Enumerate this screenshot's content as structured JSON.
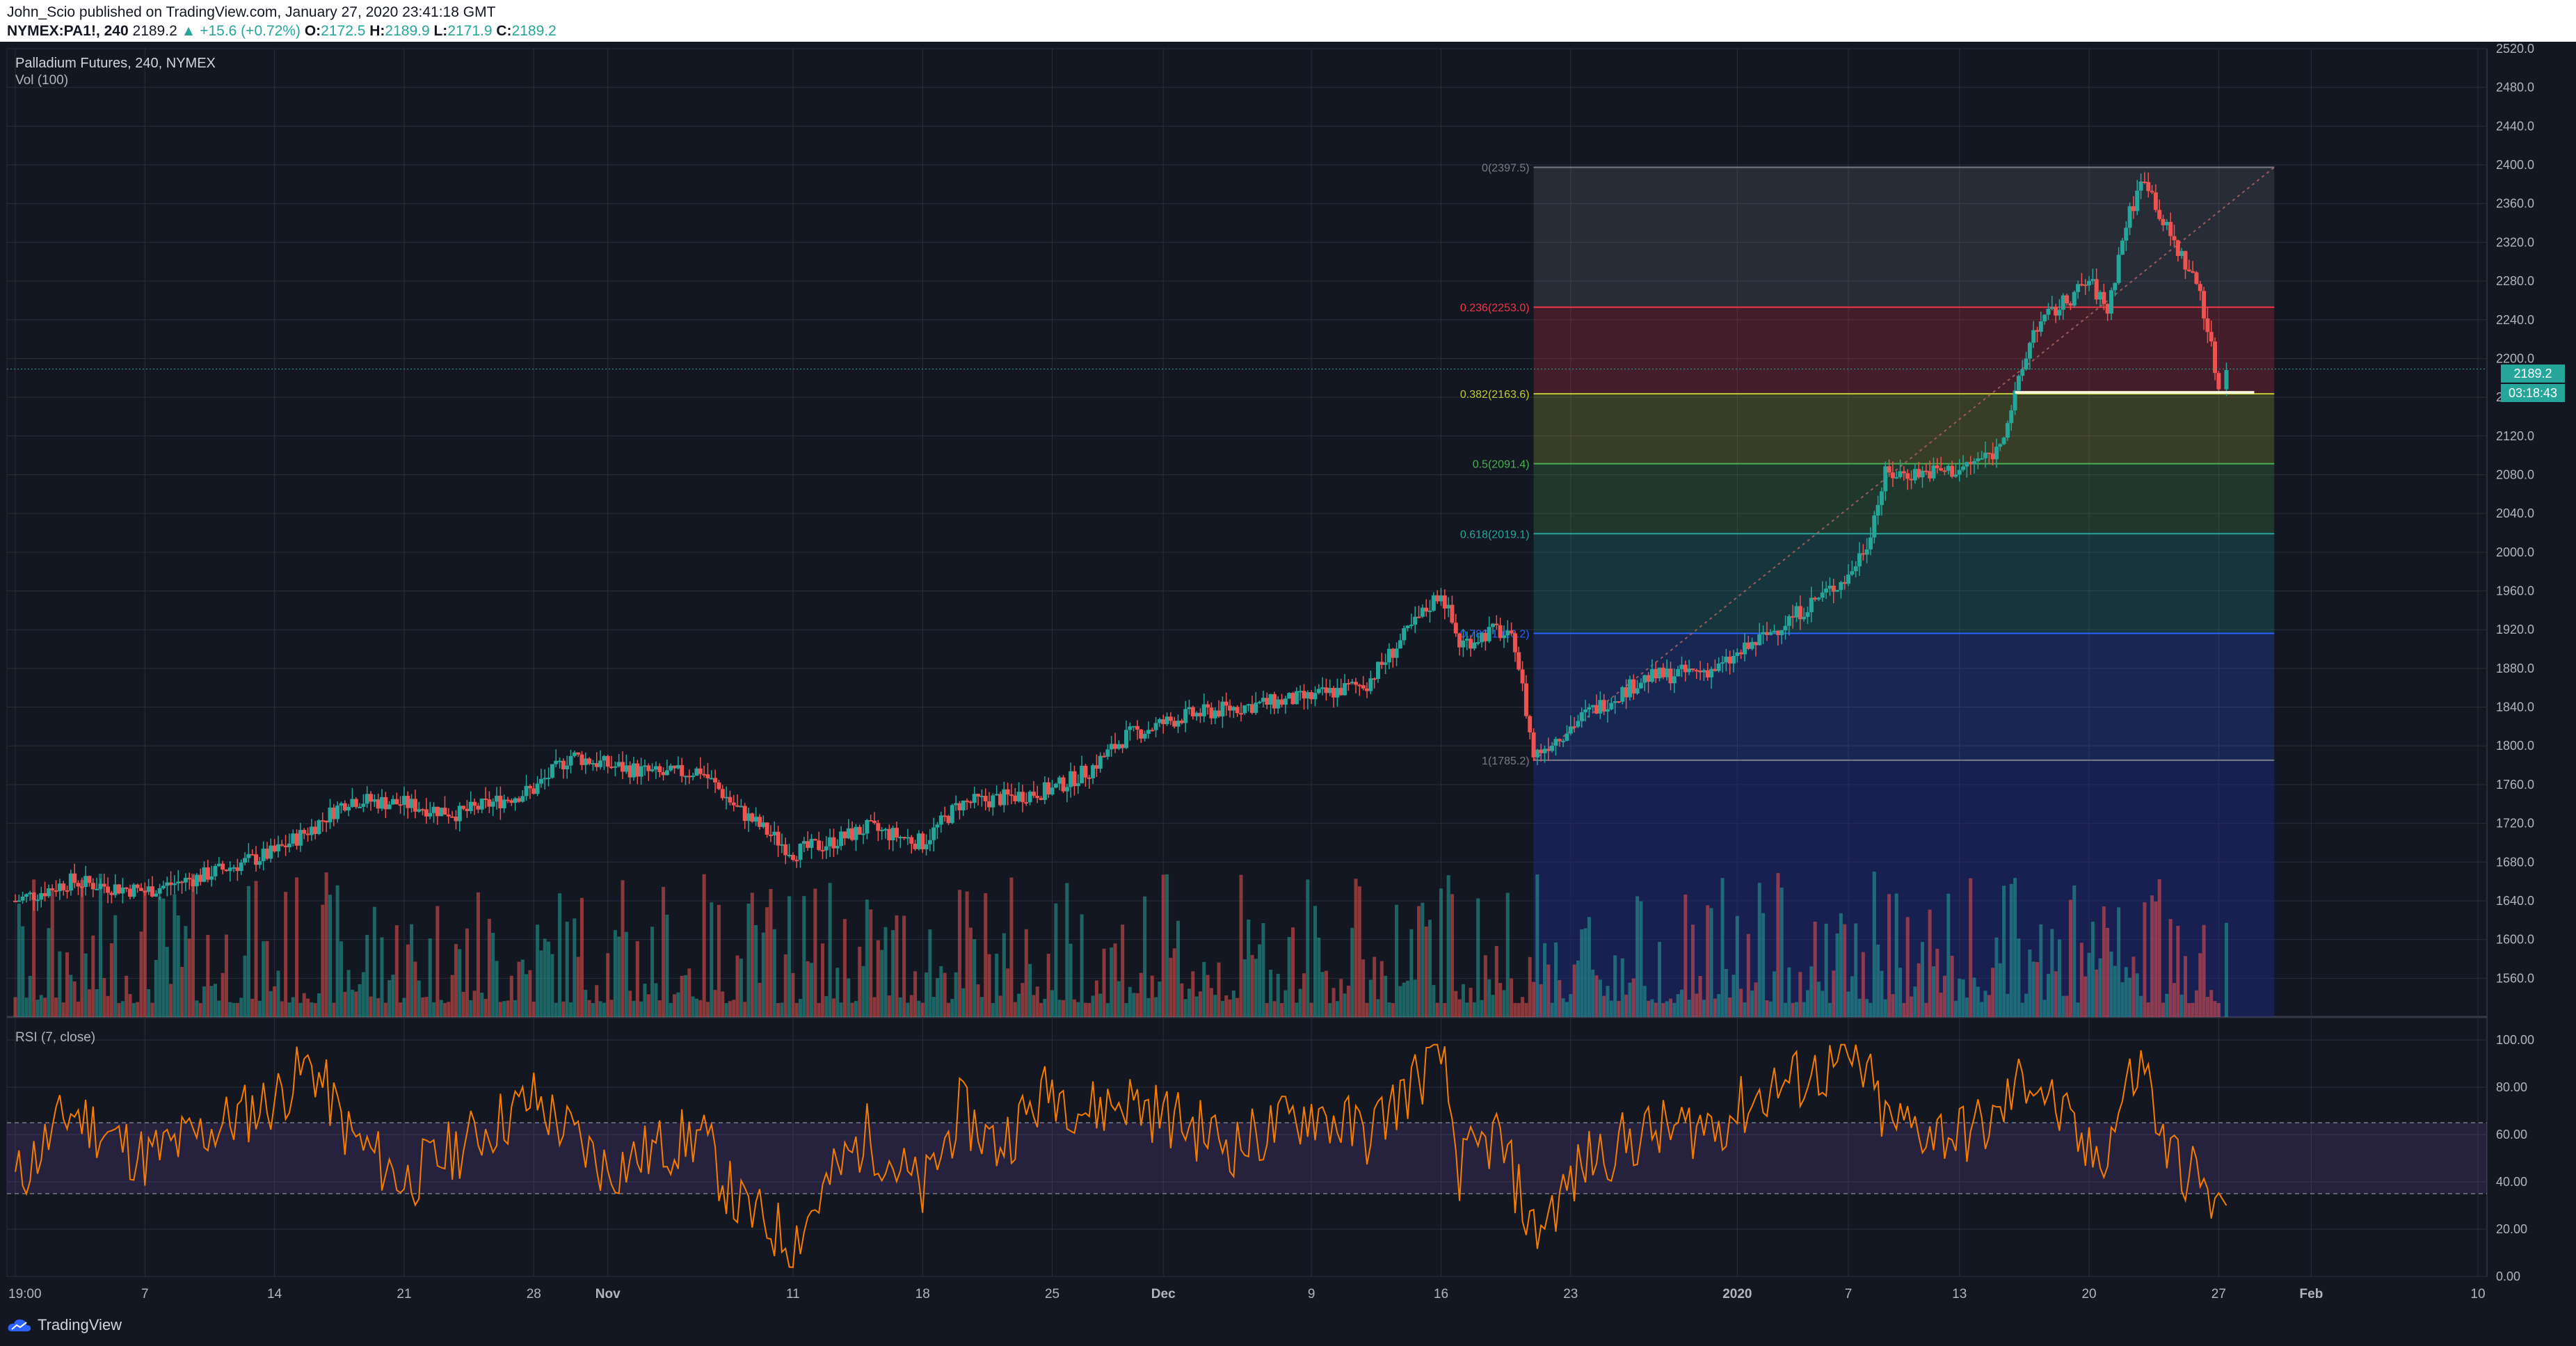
{
  "header": {
    "publisher_line": "John_Scio published on TradingView.com, January 27, 2020 23:41:18 GMT",
    "symbol": "NYMEX:PA1!, 240",
    "last": "2189.2",
    "change": "▲ +15.6 (+0.72%)",
    "o_label": "O:",
    "o": "2172.5",
    "h_label": "H:",
    "h": "2189.9",
    "l_label": "L:",
    "l": "2171.9",
    "c_label": "C:",
    "c": "2189.2"
  },
  "legend": {
    "title": "Palladium Futures, 240, NYMEX",
    "volume": "Vol (100)",
    "rsi": "RSI (7, close)"
  },
  "price_badges": {
    "price": "2189.2",
    "countdown": "03:18:43"
  },
  "footer": {
    "brand": "TradingView"
  },
  "colors": {
    "up": "#26a69a",
    "down": "#ef5350",
    "rsi": "#f57c00",
    "background": "#131722",
    "grid": "#2a2e39"
  },
  "chart_data": [
    {
      "type": "candlestick",
      "title": "Palladium Futures, 240, NYMEX",
      "ylim": [
        1520,
        2520
      ],
      "y_ticks": [
        "2520.0",
        "2480.0",
        "2440.0",
        "2400.0",
        "2360.0",
        "2320.0",
        "2280.0",
        "2240.0",
        "2200.0",
        "2160.0",
        "2120.0",
        "2080.0",
        "2040.0",
        "2000.0",
        "1960.0",
        "1920.0",
        "1880.0",
        "1840.0",
        "1800.0",
        "1760.0",
        "1720.0",
        "1680.0",
        "1640.0",
        "1600.0",
        "1560.0"
      ],
      "x_ticks": [
        "19:00",
        "7",
        "14",
        "21",
        "28",
        "Nov",
        "11",
        "18",
        "25",
        "Dec",
        "9",
        "16",
        "23",
        "2020",
        "7",
        "13",
        "20",
        "27",
        "Feb",
        "10"
      ],
      "x_tick_dates": [
        "2019-09-30",
        "2019-10-07",
        "2019-10-14",
        "2019-10-21",
        "2019-10-28",
        "2019-11-01",
        "2019-11-11",
        "2019-11-18",
        "2019-11-25",
        "2019-12-01",
        "2019-12-09",
        "2019-12-16",
        "2019-12-23",
        "2020-01-01",
        "2020-01-07",
        "2020-01-13",
        "2020-01-20",
        "2020-01-27",
        "2020-02-01",
        "2020-02-10"
      ],
      "close_series": [
        [
          "2019-09-30",
          1640
        ],
        [
          "2019-10-03",
          1660
        ],
        [
          "2019-10-07",
          1650
        ],
        [
          "2019-10-10",
          1665
        ],
        [
          "2019-10-14",
          1690
        ],
        [
          "2019-10-16",
          1715
        ],
        [
          "2019-10-18",
          1745
        ],
        [
          "2019-10-21",
          1740
        ],
        [
          "2019-10-24",
          1730
        ],
        [
          "2019-10-28",
          1755
        ],
        [
          "2019-10-30",
          1790
        ],
        [
          "2019-11-01",
          1780
        ],
        [
          "2019-11-04",
          1770
        ],
        [
          "2019-11-06",
          1775
        ],
        [
          "2019-11-08",
          1735
        ],
        [
          "2019-11-11",
          1690
        ],
        [
          "2019-11-13",
          1700
        ],
        [
          "2019-11-15",
          1715
        ],
        [
          "2019-11-18",
          1700
        ],
        [
          "2019-11-20",
          1740
        ],
        [
          "2019-11-22",
          1745
        ],
        [
          "2019-11-25",
          1755
        ],
        [
          "2019-11-27",
          1775
        ],
        [
          "2019-11-29",
          1810
        ],
        [
          "2019-12-02",
          1830
        ],
        [
          "2019-12-05",
          1840
        ],
        [
          "2019-12-09",
          1850
        ],
        [
          "2019-12-12",
          1865
        ],
        [
          "2019-12-16",
          1960
        ],
        [
          "2019-12-17",
          1905
        ],
        [
          "2019-12-19",
          1920
        ],
        [
          "2019-12-20",
          1905
        ],
        [
          "2019-12-21",
          1790
        ],
        [
          "2019-12-24",
          1835
        ],
        [
          "2019-12-27",
          1870
        ],
        [
          "2019-12-31",
          1880
        ],
        [
          "2020-01-03",
          1920
        ],
        [
          "2020-01-07",
          1975
        ],
        [
          "2020-01-08",
          2010
        ],
        [
          "2020-01-09",
          2080
        ],
        [
          "2020-01-13",
          2085
        ],
        [
          "2020-01-15",
          2105
        ],
        [
          "2020-01-16",
          2160
        ],
        [
          "2020-01-17",
          2230
        ],
        [
          "2020-01-20",
          2280
        ],
        [
          "2020-01-21",
          2250
        ],
        [
          "2020-01-22",
          2340
        ],
        [
          "2020-01-23",
          2390
        ],
        [
          "2020-01-24",
          2340
        ],
        [
          "2020-01-26",
          2270
        ],
        [
          "2020-01-27",
          2170
        ],
        [
          "2020-01-27",
          2189.2
        ]
      ],
      "last_price": 2189.2,
      "support_line": 2165,
      "fibonacci": {
        "from": [
          "2019-12-21",
          1785.2
        ],
        "to": [
          "2020-01-30",
          2397.5
        ],
        "levels": [
          {
            "label": "0(2397.5)",
            "value": 2397.5,
            "color": "#787b86"
          },
          {
            "label": "0.236(2253.0)",
            "value": 2253.0,
            "color": "#f23645"
          },
          {
            "label": "0.382(2163.6)",
            "value": 2163.6,
            "color": "#c0ca33"
          },
          {
            "label": "0.5(2091.4)",
            "value": 2091.4,
            "color": "#4caf50"
          },
          {
            "label": "0.618(2019.1)",
            "value": 2019.1,
            "color": "#26a69a"
          },
          {
            "label": "0.786(1916.2)",
            "value": 1916.2,
            "color": "#2962ff"
          },
          {
            "label": "1(1785.2)",
            "value": 1785.2,
            "color": "#787b86"
          }
        ]
      }
    },
    {
      "type": "bar",
      "title": "Vol (100)"
    },
    {
      "type": "line",
      "title": "RSI (7, close)",
      "ylim": [
        0,
        100
      ],
      "y_ticks": [
        "100.00",
        "80.00",
        "60.00",
        "40.00",
        "20.00",
        "0.00"
      ],
      "bands": [
        35,
        65
      ],
      "series": [
        [
          "2019-09-30",
          40
        ],
        [
          "2019-10-03",
          70
        ],
        [
          "2019-10-07",
          50
        ],
        [
          "2019-10-10",
          60
        ],
        [
          "2019-10-14",
          75
        ],
        [
          "2019-10-16",
          90
        ],
        [
          "2019-10-18",
          60
        ],
        [
          "2019-10-21",
          40
        ],
        [
          "2019-10-24",
          55
        ],
        [
          "2019-10-28",
          75
        ],
        [
          "2019-10-30",
          60
        ],
        [
          "2019-11-01",
          45
        ],
        [
          "2019-11-04",
          55
        ],
        [
          "2019-11-06",
          60
        ],
        [
          "2019-11-08",
          30
        ],
        [
          "2019-11-11",
          15
        ],
        [
          "2019-11-13",
          40
        ],
        [
          "2019-11-15",
          60
        ],
        [
          "2019-11-18",
          35
        ],
        [
          "2019-11-20",
          70
        ],
        [
          "2019-11-22",
          55
        ],
        [
          "2019-11-25",
          80
        ],
        [
          "2019-11-27",
          70
        ],
        [
          "2019-11-29",
          75
        ],
        [
          "2019-12-02",
          65
        ],
        [
          "2019-12-05",
          55
        ],
        [
          "2019-12-09",
          70
        ],
        [
          "2019-12-12",
          60
        ],
        [
          "2019-12-16",
          95
        ],
        [
          "2019-12-17",
          45
        ],
        [
          "2019-12-19",
          60
        ],
        [
          "2019-12-20",
          40
        ],
        [
          "2019-12-21",
          18
        ],
        [
          "2019-12-24",
          50
        ],
        [
          "2019-12-27",
          60
        ],
        [
          "2019-12-31",
          65
        ],
        [
          "2020-01-03",
          80
        ],
        [
          "2020-01-07",
          90
        ],
        [
          "2020-01-08",
          85
        ],
        [
          "2020-01-09",
          65
        ],
        [
          "2020-01-13",
          60
        ],
        [
          "2020-01-15",
          65
        ],
        [
          "2020-01-16",
          80
        ],
        [
          "2020-01-17",
          85
        ],
        [
          "2020-01-20",
          50
        ],
        [
          "2020-01-21",
          55
        ],
        [
          "2020-01-22",
          80
        ],
        [
          "2020-01-23",
          90
        ],
        [
          "2020-01-24",
          55
        ],
        [
          "2020-01-26",
          40
        ],
        [
          "2020-01-27",
          25
        ],
        [
          "2020-01-27",
          30
        ]
      ]
    }
  ]
}
